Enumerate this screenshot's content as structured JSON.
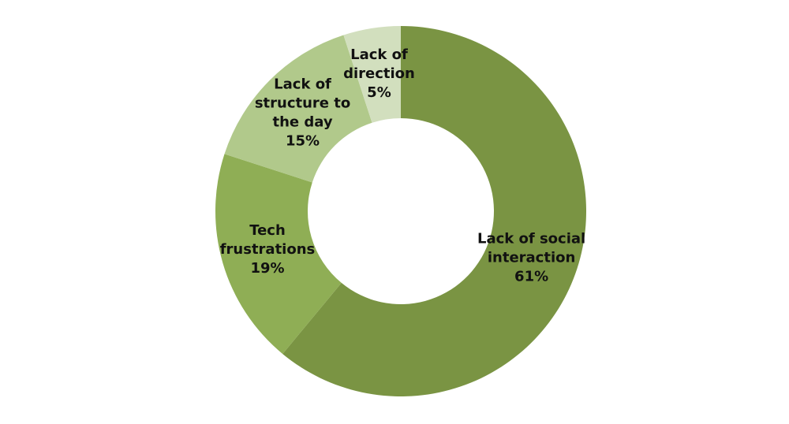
{
  "chart_data": {
    "type": "donut",
    "categories": [
      "Lack of social interaction",
      "Tech frustrations",
      "Lack of structure to the day",
      "Lack of direction"
    ],
    "values": [
      61,
      19,
      15,
      5
    ],
    "value_labels": [
      "61%",
      "19%",
      "15%",
      "5%"
    ],
    "colors": [
      "#7a9443",
      "#8fae55",
      "#b1c98b",
      "#d2dfbe"
    ]
  }
}
